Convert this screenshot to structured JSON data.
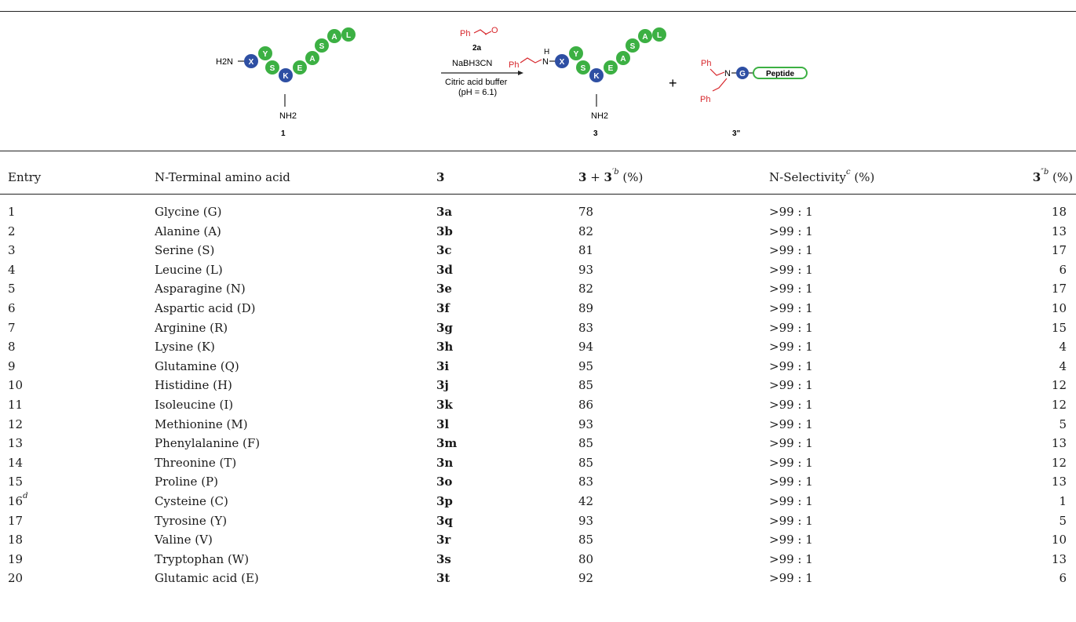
{
  "scheme": {
    "reagent_ph": "Ph",
    "reagent_label": "2a",
    "reductant": "NaBH3CN",
    "buffer": "Citric acid buffer",
    "ph": "(pH = 6.1)",
    "start_label": "1",
    "product_label": "3",
    "byproduct_label": "3\"",
    "plus": "+",
    "peptide": "Peptide",
    "h2n": "H2N",
    "nh2": "NH2",
    "residues_start": [
      "X",
      "Y",
      "S",
      "K",
      "E",
      "A",
      "S",
      "A",
      "L"
    ],
    "residues_product": [
      "X",
      "Y",
      "S",
      "K",
      "E",
      "A",
      "S",
      "A",
      "L"
    ],
    "colors": {
      "blue": "#2e4fa3",
      "green": "#3cb043",
      "red": "#d7262b"
    }
  },
  "table": {
    "headers": {
      "entry": "Entry",
      "amino_acid": "N-Terminal amino acid",
      "product": "3",
      "yield_a": "3",
      "yield_plus": " + ",
      "yield_b": "3",
      "yield_b_sup": "′b",
      "yield_unit": " (%)",
      "selectivity": "N-Selectivity",
      "selectivity_sup": "c",
      "selectivity_unit": " (%)",
      "dibenzyl": "3",
      "dibenzyl_sup": "″b",
      "dibenzyl_unit": " (%)"
    },
    "rows": [
      {
        "entry": "1",
        "sup": "",
        "aa": "Glycine (G)",
        "prod": "3a",
        "yield": "78",
        "sel": ">99 : 1",
        "di": "18"
      },
      {
        "entry": "2",
        "sup": "",
        "aa": "Alanine (A)",
        "prod": "3b",
        "yield": "82",
        "sel": ">99 : 1",
        "di": "13"
      },
      {
        "entry": "3",
        "sup": "",
        "aa": "Serine (S)",
        "prod": "3c",
        "yield": "81",
        "sel": ">99 : 1",
        "di": "17"
      },
      {
        "entry": "4",
        "sup": "",
        "aa": "Leucine (L)",
        "prod": "3d",
        "yield": "93",
        "sel": ">99 : 1",
        "di": "6"
      },
      {
        "entry": "5",
        "sup": "",
        "aa": "Asparagine (N)",
        "prod": "3e",
        "yield": "82",
        "sel": ">99 : 1",
        "di": "17"
      },
      {
        "entry": "6",
        "sup": "",
        "aa": "Aspartic acid (D)",
        "prod": "3f",
        "yield": "89",
        "sel": ">99 : 1",
        "di": "10"
      },
      {
        "entry": "7",
        "sup": "",
        "aa": "Arginine (R)",
        "prod": "3g",
        "yield": "83",
        "sel": ">99 : 1",
        "di": "15"
      },
      {
        "entry": "8",
        "sup": "",
        "aa": "Lysine (K)",
        "prod": "3h",
        "yield": "94",
        "sel": ">99 : 1",
        "di": "4"
      },
      {
        "entry": "9",
        "sup": "",
        "aa": "Glutamine (Q)",
        "prod": "3i",
        "yield": "95",
        "sel": ">99 : 1",
        "di": "4"
      },
      {
        "entry": "10",
        "sup": "",
        "aa": "Histidine (H)",
        "prod": "3j",
        "yield": "85",
        "sel": ">99 : 1",
        "di": "12"
      },
      {
        "entry": "11",
        "sup": "",
        "aa": "Isoleucine (I)",
        "prod": "3k",
        "yield": "86",
        "sel": ">99 : 1",
        "di": "12"
      },
      {
        "entry": "12",
        "sup": "",
        "aa": "Methionine (M)",
        "prod": "3l",
        "yield": "93",
        "sel": ">99 : 1",
        "di": "5"
      },
      {
        "entry": "13",
        "sup": "",
        "aa": "Phenylalanine (F)",
        "prod": "3m",
        "yield": "85",
        "sel": ">99 : 1",
        "di": "13"
      },
      {
        "entry": "14",
        "sup": "",
        "aa": "Threonine (T)",
        "prod": "3n",
        "yield": "85",
        "sel": ">99 : 1",
        "di": "12"
      },
      {
        "entry": "15",
        "sup": "",
        "aa": "Proline (P)",
        "prod": "3o",
        "yield": "83",
        "sel": ">99 : 1",
        "di": "13"
      },
      {
        "entry": "16",
        "sup": "d",
        "aa": "Cysteine (C)",
        "prod": "3p",
        "yield": "42",
        "sel": ">99 : 1",
        "di": "1"
      },
      {
        "entry": "17",
        "sup": "",
        "aa": "Tyrosine (Y)",
        "prod": "3q",
        "yield": "93",
        "sel": ">99 : 1",
        "di": "5"
      },
      {
        "entry": "18",
        "sup": "",
        "aa": "Valine (V)",
        "prod": "3r",
        "yield": "85",
        "sel": ">99 : 1",
        "di": "10"
      },
      {
        "entry": "19",
        "sup": "",
        "aa": "Tryptophan (W)",
        "prod": "3s",
        "yield": "80",
        "sel": ">99 : 1",
        "di": "13"
      },
      {
        "entry": "20",
        "sup": "",
        "aa": "Glutamic acid (E)",
        "prod": "3t",
        "yield": "92",
        "sel": ">99 : 1",
        "di": "6"
      }
    ]
  }
}
